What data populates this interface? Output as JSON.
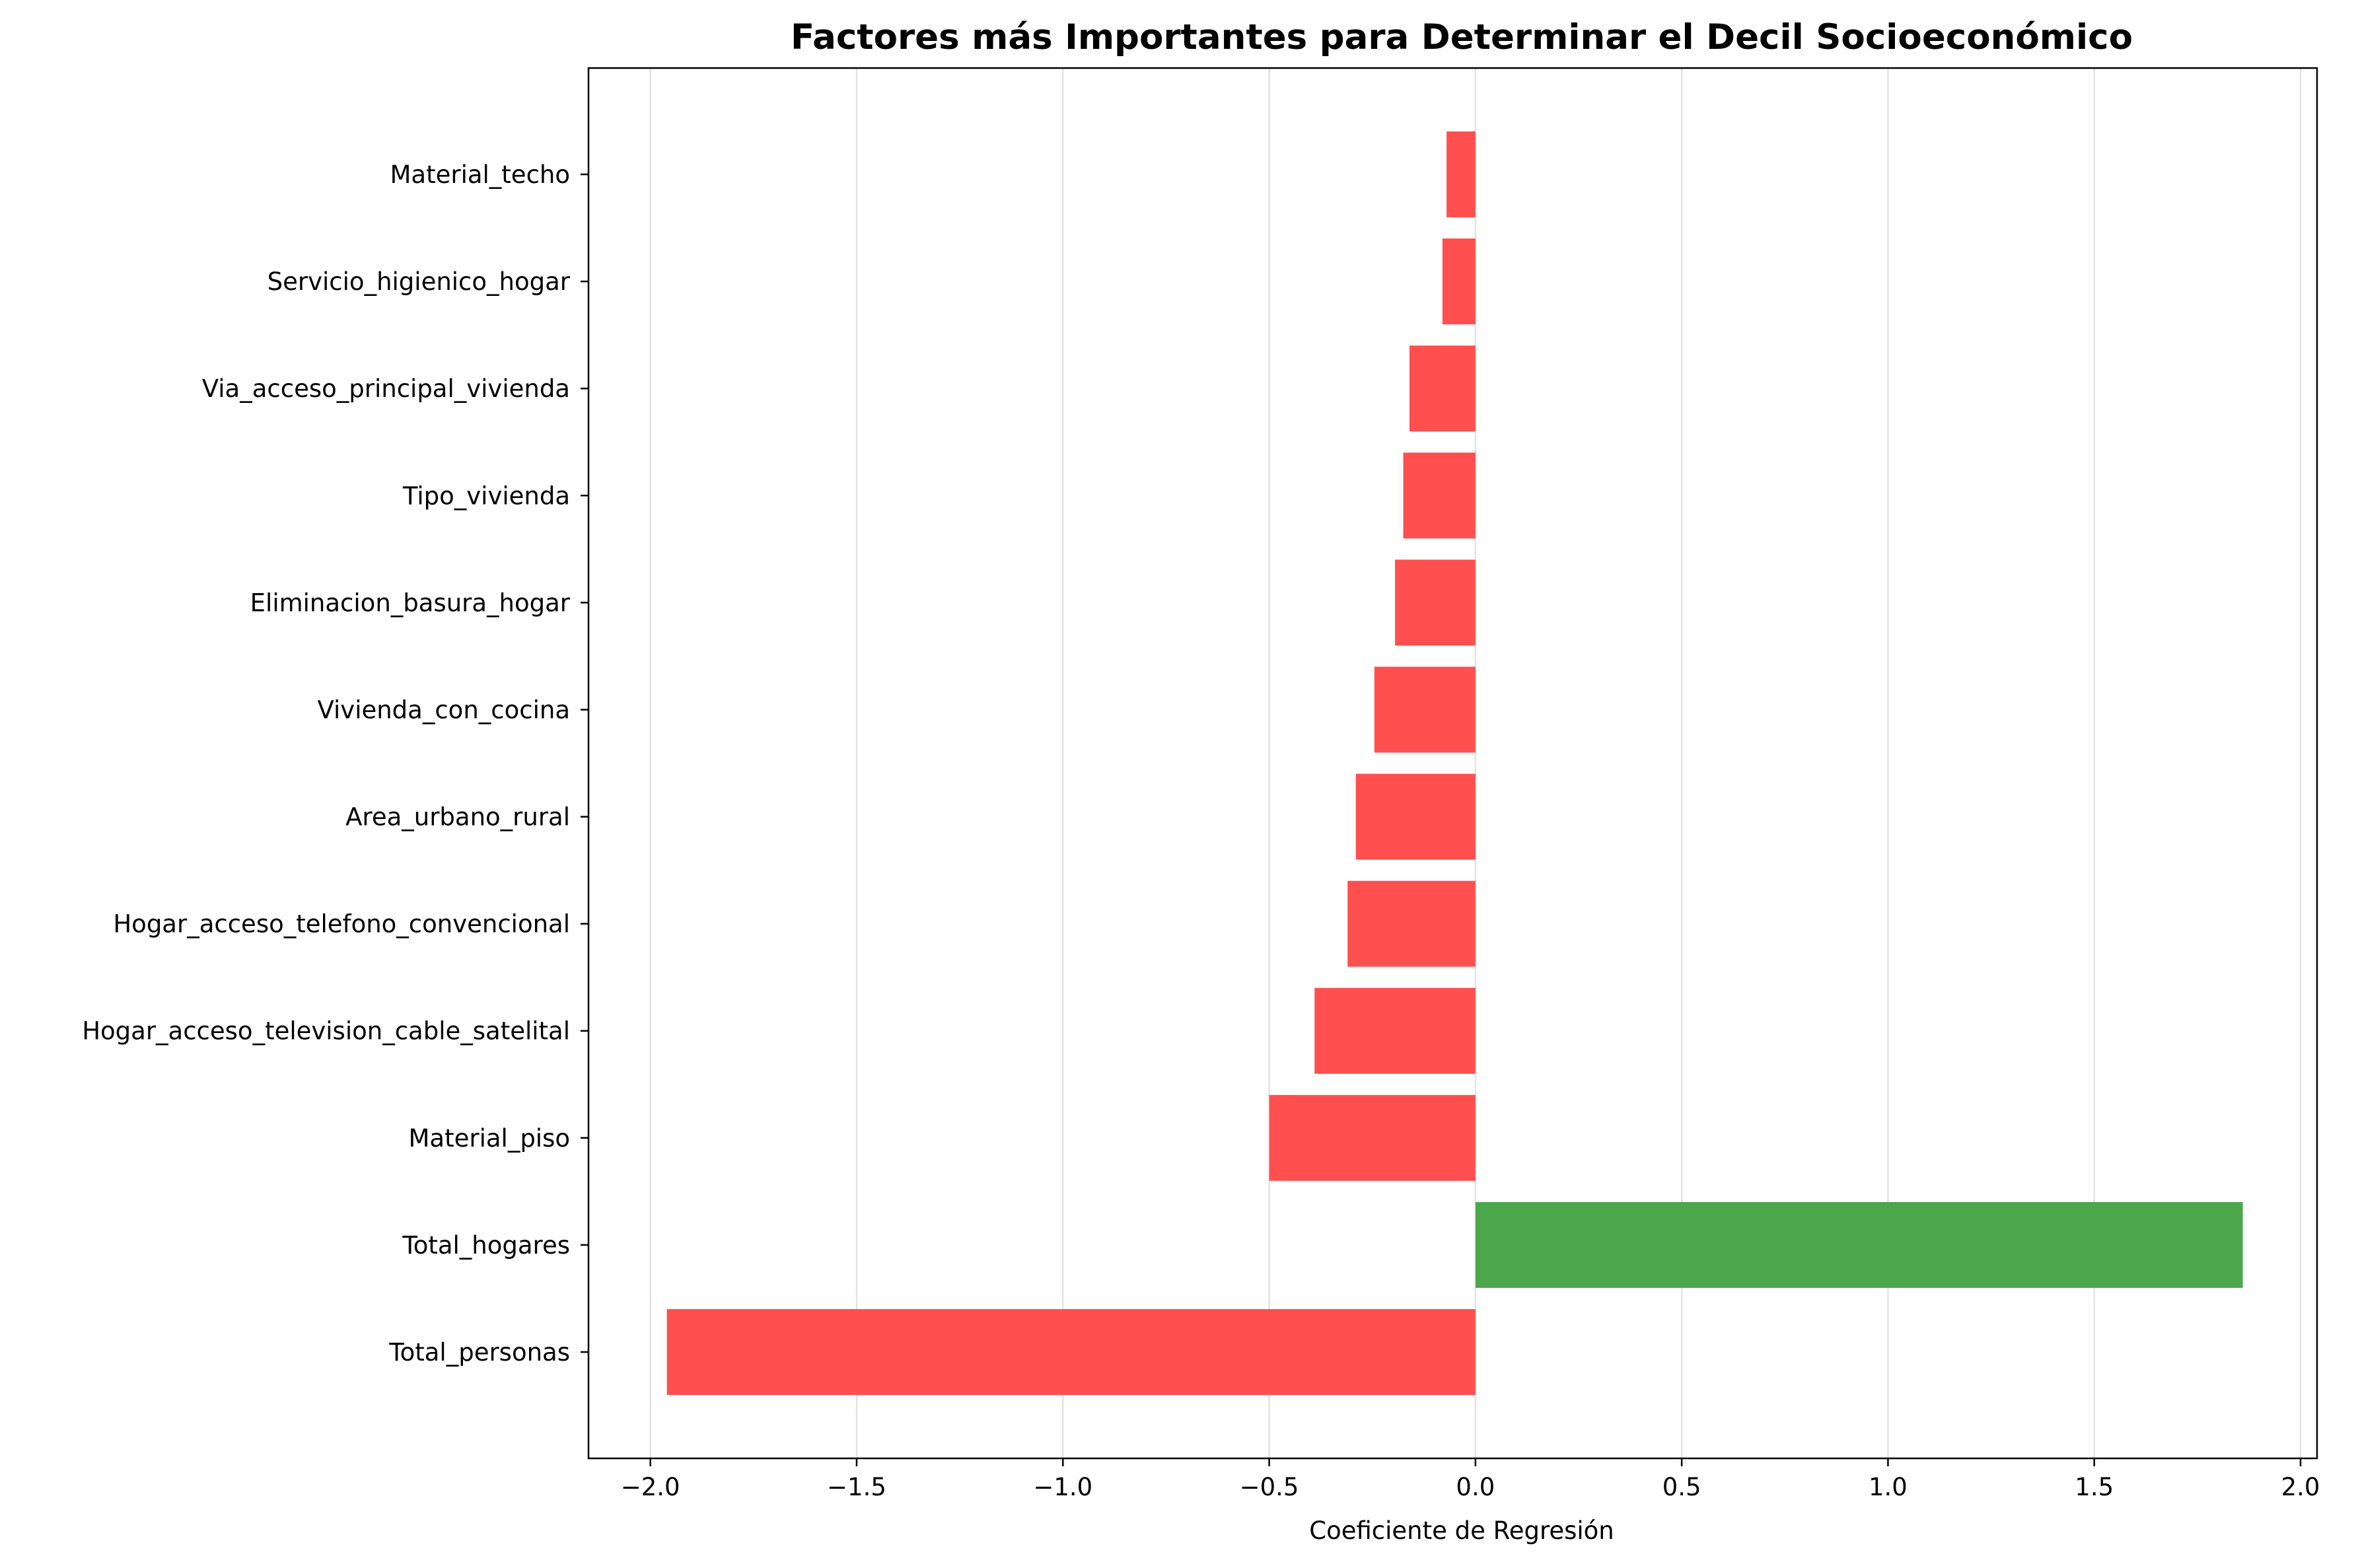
{
  "chart_data": {
    "type": "bar",
    "orientation": "horizontal",
    "title": "Factores más Importantes para Determinar el Decil Socioeconómico",
    "xlabel": "Coeficiente de Regresión",
    "ylabel": "",
    "xlim": [
      -2.15,
      2.04
    ],
    "xticks": [
      -2.0,
      -1.5,
      -1.0,
      -0.5,
      0.0,
      0.5,
      1.0,
      1.5,
      2.0
    ],
    "xtick_labels": [
      "−2.0",
      "−1.5",
      "−1.0",
      "−0.5",
      "0.0",
      "0.5",
      "1.0",
      "1.5",
      "2.0"
    ],
    "grid": "vertical-x",
    "categories": [
      "Total_personas",
      "Total_hogares",
      "Material_piso",
      "Hogar_acceso_television_cable_satelital",
      "Hogar_acceso_telefono_convencional",
      "Area_urbano_rural",
      "Vivienda_con_cocina",
      "Eliminacion_basura_hogar",
      "Tipo_vivienda",
      "Via_acceso_principal_vivienda",
      "Servicio_higienico_hogar",
      "Material_techo"
    ],
    "values": [
      -1.96,
      1.86,
      -0.5,
      -0.39,
      -0.31,
      -0.29,
      -0.245,
      -0.195,
      -0.175,
      -0.16,
      -0.08,
      -0.07
    ],
    "colors": {
      "negative": "#ff4f4f",
      "positive": "#4ca64c",
      "grid": "#e3e3e3",
      "axis": "#000000"
    }
  }
}
